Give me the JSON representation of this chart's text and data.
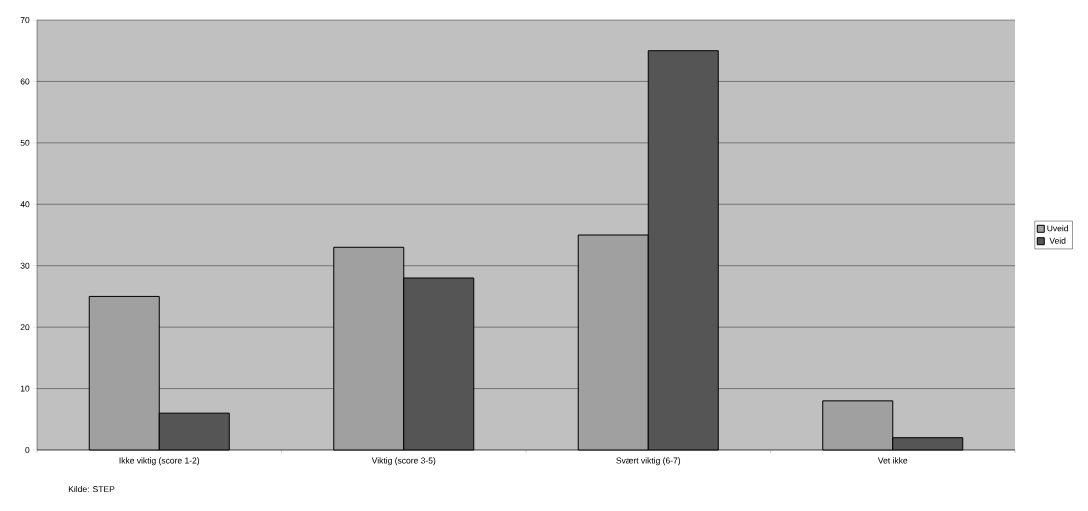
{
  "chart_data": {
    "type": "bar",
    "categories": [
      "Ikke viktig (score 1-2)",
      "Viktig (score 3-5)",
      "Svært viktig (6-7)",
      "Vet ikke"
    ],
    "series": [
      {
        "name": "Uveid",
        "color": "#a0a0a0",
        "values": [
          25,
          33,
          35,
          8
        ]
      },
      {
        "name": "Veid",
        "color": "#555555",
        "values": [
          6,
          28,
          65,
          2
        ]
      }
    ],
    "ylim": [
      0,
      70
    ],
    "yticks": [
      0,
      10,
      20,
      30,
      40,
      50,
      60,
      70
    ],
    "grid": "y",
    "legend": "right",
    "annotations": [
      "Kilde: STEP"
    ]
  }
}
